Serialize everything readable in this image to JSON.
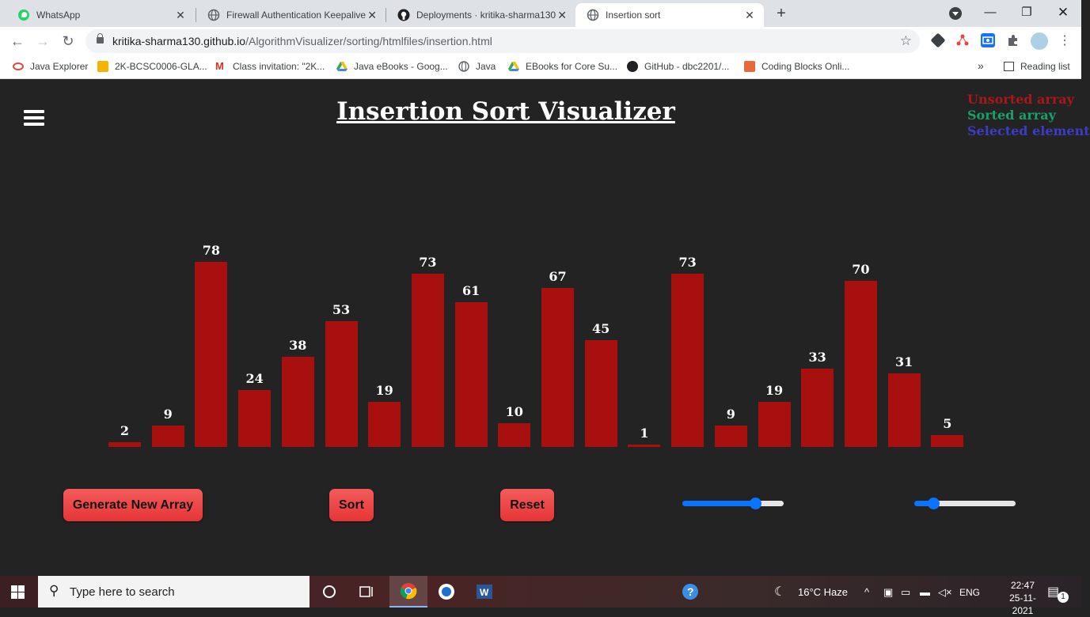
{
  "browser": {
    "tabs": [
      {
        "title": "WhatsApp",
        "icon": "whatsapp-icon",
        "active": false
      },
      {
        "title": "Firewall Authentication Keepalive",
        "icon": "globe-icon",
        "active": false
      },
      {
        "title": "Deployments · kritika-sharma130",
        "icon": "github-icon",
        "active": false
      },
      {
        "title": "Insertion sort",
        "icon": "globe-icon",
        "active": true
      }
    ],
    "address": {
      "host": "kritika-sharma130.github.io",
      "path": "/AlgorithmVisualizer/sorting/htmlfiles/insertion.html"
    },
    "bookmarks": [
      {
        "label": "Java Explorer",
        "icon": "oracle-icon",
        "color": "#e0483a"
      },
      {
        "label": "2K-BCSC0006-GLA...",
        "icon": "classroom-icon",
        "color": "#f4b400"
      },
      {
        "label": "Class invitation: \"2K...",
        "icon": "gmail-icon",
        "color": "#d93025"
      },
      {
        "label": "Java eBooks - Goog...",
        "icon": "drive-icon",
        "color": "#34a853"
      },
      {
        "label": "Java",
        "icon": "globe-icon",
        "color": "#5f6368"
      },
      {
        "label": "EBooks for Core Su...",
        "icon": "drive-icon",
        "color": "#34a853"
      },
      {
        "label": "GitHub - dbc2201/...",
        "icon": "github-icon",
        "color": "#202124"
      },
      {
        "label": "Coding Blocks Onli...",
        "icon": "codingblocks-icon",
        "color": "#e66a3a"
      }
    ],
    "reading_list": "Reading list"
  },
  "page": {
    "title": "Insertion Sort Visualizer",
    "legend": [
      {
        "label": "Unsorted array",
        "color": "#a81818"
      },
      {
        "label": "Sorted array",
        "color": "#18a06a"
      },
      {
        "label": "Selected element",
        "color": "#3c3cc8"
      }
    ],
    "bar_color": "#a81010",
    "array": [
      2,
      9,
      78,
      24,
      38,
      53,
      19,
      73,
      61,
      10,
      67,
      45,
      1,
      73,
      9,
      19,
      33,
      70,
      31,
      5
    ],
    "buttons": {
      "generate": "Generate New Array",
      "sort": "Sort",
      "reset": "Reset"
    },
    "sliders": {
      "size": 0.75,
      "speed": 0.15
    }
  },
  "taskbar": {
    "search_placeholder": "Type here to search",
    "weather": "16°C  Haze",
    "language": "ENG",
    "time": "22:47",
    "date": "25-11-2021",
    "notifications": "1"
  }
}
